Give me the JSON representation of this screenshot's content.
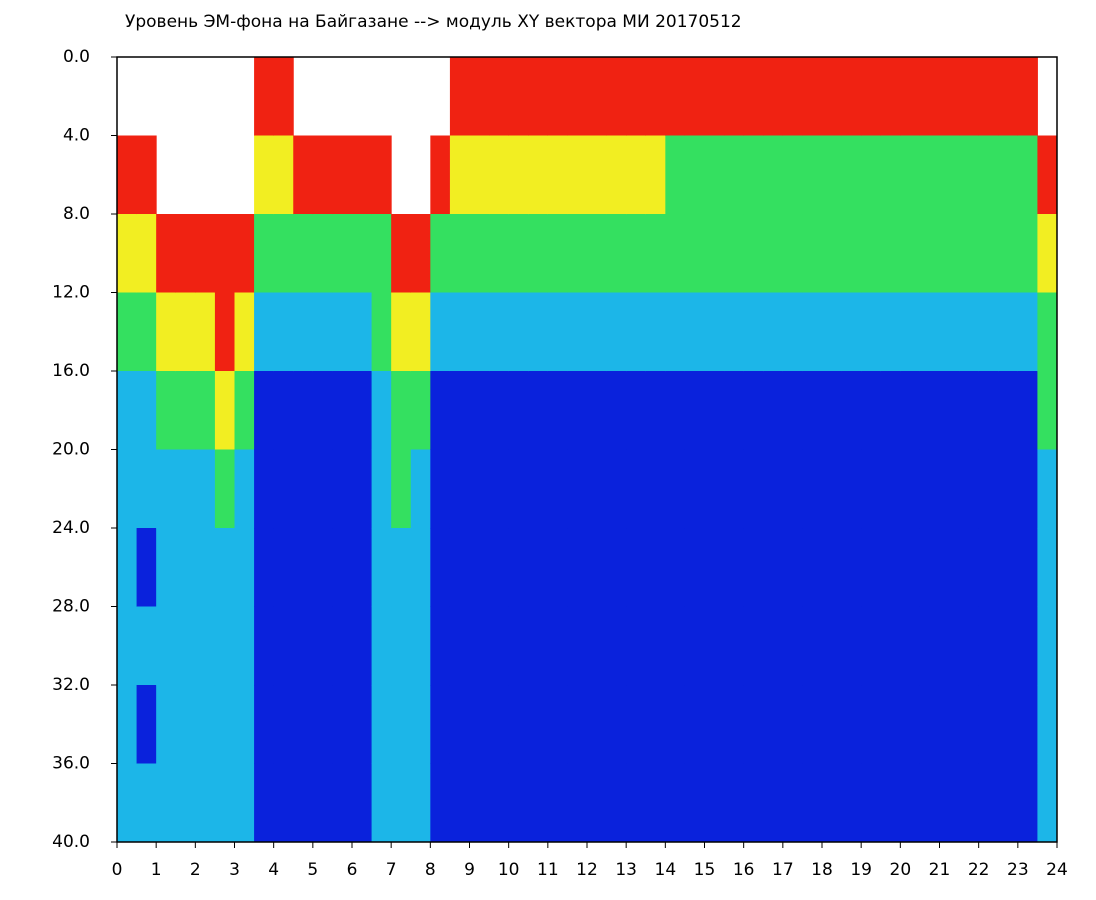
{
  "chart_data": {
    "type": "heatmap",
    "title": "Уровень ЭМ-фона на Байгазане  --> модуль XY вектора МИ  20170512",
    "xlim": [
      0,
      24
    ],
    "ylim": [
      0,
      40
    ],
    "y_inverted": true,
    "xticks": [
      0,
      1,
      2,
      3,
      4,
      5,
      6,
      7,
      8,
      9,
      10,
      11,
      12,
      13,
      14,
      15,
      16,
      17,
      18,
      19,
      20,
      21,
      22,
      23,
      24
    ],
    "yticks": [
      {
        "value": 0,
        "label": "0.0"
      },
      {
        "value": 4,
        "label": "4.0"
      },
      {
        "value": 8,
        "label": "8.0"
      },
      {
        "value": 12,
        "label": "12.0"
      },
      {
        "value": 16,
        "label": "16.0"
      },
      {
        "value": 20,
        "label": "20.0"
      },
      {
        "value": 24,
        "label": "24.0"
      },
      {
        "value": 28,
        "label": "28.0"
      },
      {
        "value": 32,
        "label": "32.0"
      },
      {
        "value": 36,
        "label": "36.0"
      },
      {
        "value": 40,
        "label": "40.0"
      }
    ],
    "colors": [
      "#0a22dc",
      "#1cb6e8",
      "#34e060",
      "#f2ee22",
      "#f02212"
    ],
    "x": [
      0,
      0.5,
      1,
      1.5,
      2,
      2.5,
      3,
      3.5,
      4,
      4.5,
      5,
      5.5,
      6,
      6.5,
      7,
      7.5,
      8,
      8.5,
      9,
      9.5,
      10,
      10.5,
      11,
      11.5,
      12,
      12.5,
      13,
      13.5,
      14,
      14.5,
      15,
      15.5,
      16,
      16.5,
      17,
      17.5,
      18,
      18.5,
      19,
      19.5,
      20,
      20.5,
      21,
      21.5,
      22,
      22.5,
      23,
      23.5
    ],
    "y": [
      0,
      4,
      8,
      12,
      16,
      20,
      24,
      28,
      32,
      36
    ],
    "values": [
      [
        null,
        4,
        3,
        2,
        1,
        1,
        1,
        1,
        1,
        1
      ],
      [
        null,
        4,
        3,
        2,
        1,
        1,
        0,
        1,
        0,
        1
      ],
      [
        null,
        null,
        4,
        3,
        2,
        1,
        1,
        1,
        1,
        1
      ],
      [
        null,
        null,
        4,
        3,
        2,
        1,
        1,
        1,
        1,
        1
      ],
      [
        null,
        null,
        4,
        3,
        2,
        1,
        1,
        1,
        1,
        1
      ],
      [
        null,
        null,
        4,
        4,
        3,
        2,
        1,
        1,
        1,
        1
      ],
      [
        null,
        null,
        4,
        3,
        2,
        1,
        1,
        1,
        1,
        1
      ],
      [
        4,
        3,
        2,
        1,
        0,
        0,
        0,
        0,
        0,
        0
      ],
      [
        4,
        3,
        2,
        1,
        0,
        0,
        0,
        0,
        0,
        0
      ],
      [
        null,
        4,
        2,
        1,
        0,
        0,
        0,
        0,
        0,
        0
      ],
      [
        null,
        4,
        2,
        1,
        0,
        0,
        0,
        0,
        0,
        0
      ],
      [
        null,
        4,
        2,
        1,
        0,
        0,
        0,
        0,
        0,
        0
      ],
      [
        null,
        4,
        2,
        1,
        0,
        0,
        0,
        0,
        0,
        0
      ],
      [
        null,
        4,
        2,
        2,
        1,
        1,
        1,
        1,
        1,
        1
      ],
      [
        null,
        null,
        4,
        3,
        2,
        2,
        1,
        1,
        1,
        1
      ],
      [
        null,
        null,
        4,
        3,
        2,
        1,
        1,
        1,
        1,
        1
      ],
      [
        null,
        4,
        2,
        1,
        0,
        0,
        0,
        0,
        0,
        0
      ],
      [
        4,
        3,
        2,
        1,
        0,
        0,
        0,
        0,
        0,
        0
      ],
      [
        4,
        3,
        2,
        1,
        0,
        0,
        0,
        0,
        0,
        0
      ],
      [
        4,
        3,
        2,
        1,
        0,
        0,
        0,
        0,
        0,
        0
      ],
      [
        4,
        3,
        2,
        1,
        0,
        0,
        0,
        0,
        0,
        0
      ],
      [
        4,
        3,
        2,
        1,
        0,
        0,
        0,
        0,
        0,
        0
      ],
      [
        4,
        3,
        2,
        1,
        0,
        0,
        0,
        0,
        0,
        0
      ],
      [
        4,
        3,
        2,
        1,
        0,
        0,
        0,
        0,
        0,
        0
      ],
      [
        4,
        3,
        2,
        1,
        0,
        0,
        0,
        0,
        0,
        0
      ],
      [
        4,
        3,
        2,
        1,
        0,
        0,
        0,
        0,
        0,
        0
      ],
      [
        4,
        3,
        2,
        1,
        0,
        0,
        0,
        0,
        0,
        0
      ],
      [
        4,
        3,
        2,
        1,
        0,
        0,
        0,
        0,
        0,
        0
      ],
      [
        4,
        2,
        2,
        1,
        0,
        0,
        0,
        0,
        0,
        0
      ],
      [
        4,
        2,
        2,
        1,
        0,
        0,
        0,
        0,
        0,
        0
      ],
      [
        4,
        2,
        2,
        1,
        0,
        0,
        0,
        0,
        0,
        0
      ],
      [
        4,
        2,
        2,
        1,
        0,
        0,
        0,
        0,
        0,
        0
      ],
      [
        4,
        2,
        2,
        1,
        0,
        0,
        0,
        0,
        0,
        0
      ],
      [
        4,
        2,
        2,
        1,
        0,
        0,
        0,
        0,
        0,
        0
      ],
      [
        4,
        2,
        2,
        1,
        0,
        0,
        0,
        0,
        0,
        0
      ],
      [
        4,
        2,
        2,
        1,
        0,
        0,
        0,
        0,
        0,
        0
      ],
      [
        4,
        2,
        2,
        1,
        0,
        0,
        0,
        0,
        0,
        0
      ],
      [
        4,
        2,
        2,
        1,
        0,
        0,
        0,
        0,
        0,
        0
      ],
      [
        4,
        2,
        2,
        1,
        0,
        0,
        0,
        0,
        0,
        0
      ],
      [
        4,
        2,
        2,
        1,
        0,
        0,
        0,
        0,
        0,
        0
      ],
      [
        4,
        2,
        2,
        1,
        0,
        0,
        0,
        0,
        0,
        0
      ],
      [
        4,
        2,
        2,
        1,
        0,
        0,
        0,
        0,
        0,
        0
      ],
      [
        4,
        2,
        2,
        1,
        0,
        0,
        0,
        0,
        0,
        0
      ],
      [
        4,
        2,
        2,
        1,
        0,
        0,
        0,
        0,
        0,
        0
      ],
      [
        4,
        2,
        2,
        1,
        0,
        0,
        0,
        0,
        0,
        0
      ],
      [
        4,
        2,
        2,
        1,
        0,
        0,
        0,
        0,
        0,
        0
      ],
      [
        4,
        2,
        2,
        1,
        0,
        0,
        0,
        0,
        0,
        0
      ],
      [
        null,
        4,
        3,
        2,
        2,
        1,
        1,
        1,
        1,
        1
      ]
    ]
  }
}
